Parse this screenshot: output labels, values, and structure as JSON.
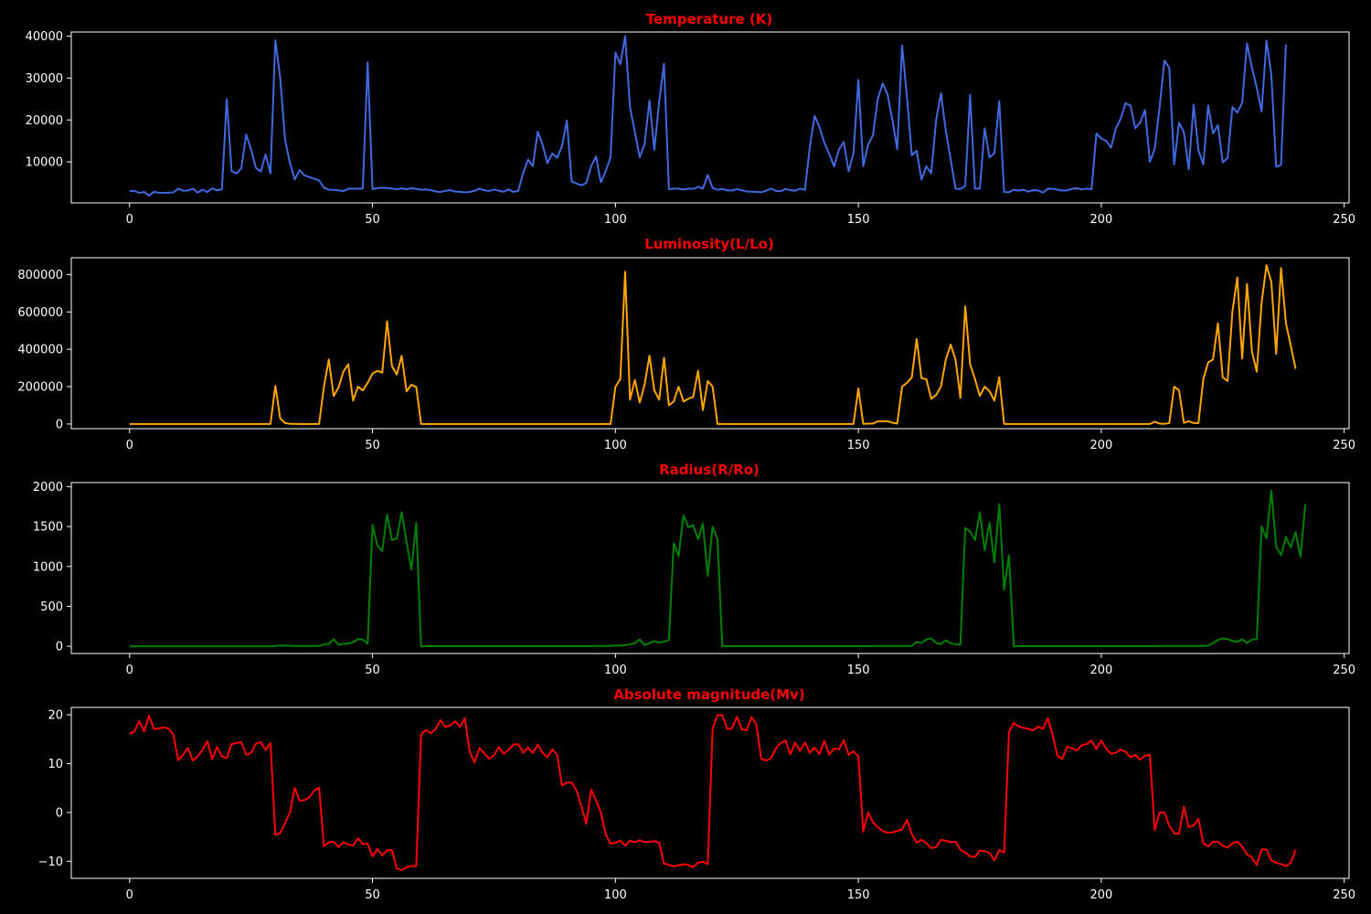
{
  "chart_data": [
    {
      "type": "line",
      "title": "Temperature (K)",
      "xlabel": "",
      "ylabel": "",
      "xlim": [
        -12,
        251
      ],
      "ylim": [
        200,
        41000
      ],
      "xticks": [
        0,
        50,
        100,
        150,
        200,
        250
      ],
      "yticks": [
        10000,
        20000,
        30000,
        40000
      ],
      "color": "#4169e1",
      "grid": false,
      "series": [
        {
          "values": [
            3068,
            3042,
            2600,
            2800,
            1939,
            2840,
            2637,
            2600,
            2650,
            2700,
            3600,
            3129,
            3134,
            3628,
            2650,
            3340,
            2799,
            3692,
            3192,
            3441,
            25000,
            7740,
            7220,
            8500,
            16500,
            12990,
            8570,
            7700,
            11790,
            7230,
            39000,
            30000,
            15276,
            9700,
            5800,
            8052,
            6757,
            6380,
            5936,
            5587,
            3826,
            3365,
            3270,
            3200,
            3008,
            3600,
            3575,
            3574,
            3625,
            33750,
            3490,
            3750,
            3834,
            3749,
            3650,
            3450,
            3660,
            3450,
            3752,
            3535,
            3341,
            3432,
            3255,
            2935,
            2800,
            3099,
            3249,
            2930,
            2850,
            2700,
            2814,
            3100,
            3600,
            3200,
            3050,
            3400,
            3100,
            2860,
            3450,
            2800,
            3100,
            7300,
            10541,
            9000,
            17200,
            14100,
            9675,
            12010,
            10980,
            13720,
            19860,
            5300,
            4800,
            4400,
            4950,
            9030,
            11250,
            5112,
            7720,
            11160,
            36108,
            33300,
            40000,
            23000,
            17120,
            11096,
            14245,
            24630,
            12893,
            24345,
            33421,
            3459,
            3605,
            3615,
            3399,
            3610,
            3553,
            4015,
            3625,
            6850,
            3780,
            3323,
            3531,
            3218,
            3146,
            3511,
            3225,
            2935,
            2861,
            2856,
            2731,
            3095,
            3607,
            3100,
            2989,
            3542,
            3243,
            3091,
            3598,
            3324,
            13420,
            21020,
            18290,
            14520,
            11900,
            8924,
            12912,
            14732,
            7723,
            12098,
            29560,
            8945,
            14060,
            16390,
            25070,
            28700,
            26140,
            20120,
            13023,
            37800,
            25390,
            11567,
            12675,
            5752,
            8927,
            7282,
            19923,
            26373,
            17383,
            10574,
            3574,
            3493,
            4287,
            26000,
            3600,
            3614,
            18000,
            11000,
            12100,
            24490,
            2817,
            2774,
            3340,
            3150,
            3340,
            2890,
            3230,
            3200,
            2630,
            3600,
            3570,
            3360,
            3150,
            3200,
            3560,
            3700,
            3400,
            3620,
            3450,
            16787,
            15574,
            15000,
            13385,
            18000,
            20300,
            24000,
            23440,
            18000,
            19400,
            22350,
            10012,
            13089,
            23095,
            34190,
            32460,
            9373,
            19364,
            17140,
            8250,
            23678,
            12749,
            9383,
            23440,
            16787,
            18734,
            9892,
            10930,
            23095,
            21738,
            24145,
            38234,
            32489,
            27739,
            22012,
            38940,
            30839,
            8829,
            9235,
            38000
          ]
        }
      ]
    },
    {
      "type": "line",
      "title": "Luminosity(L/Lo)",
      "xlabel": "",
      "ylabel": "",
      "xlim": [
        -12,
        251
      ],
      "ylim": [
        -25000,
        890000
      ],
      "xticks": [
        0,
        50,
        100,
        150,
        200,
        250
      ],
      "yticks": [
        0,
        200000,
        400000,
        600000,
        800000
      ],
      "color": "#ffa500",
      "grid": false,
      "series": [
        {
          "values": [
            0,
            0,
            0,
            0,
            0,
            0,
            0,
            0,
            0,
            0,
            0,
            0,
            0,
            0,
            0,
            0,
            0,
            0,
            0,
            0,
            0,
            0,
            0,
            0,
            0,
            0,
            0,
            0,
            0,
            0,
            204000,
            30000,
            5000,
            1000,
            500,
            200,
            100,
            100,
            100,
            100,
            200000,
            345000,
            150000,
            195000,
            280000,
            320000,
            125000,
            200000,
            180000,
            220000,
            270000,
            285000,
            275000,
            550000,
            310000,
            265000,
            365000,
            175000,
            210000,
            198000,
            0,
            0,
            0,
            0,
            0,
            0,
            0,
            0,
            0,
            0,
            0,
            0,
            0,
            0,
            0,
            0,
            0,
            0,
            0,
            0,
            0,
            0,
            0,
            0,
            0,
            0,
            0,
            0,
            0,
            0,
            0,
            0,
            0,
            0,
            0,
            0,
            0,
            0,
            0,
            0,
            200000,
            240000,
            815000,
            130000,
            236000,
            115000,
            210000,
            365000,
            180000,
            130000,
            355000,
            100000,
            120000,
            200000,
            120000,
            135000,
            145000,
            285000,
            75000,
            230000,
            200000,
            0,
            0,
            0,
            0,
            0,
            0,
            0,
            0,
            0,
            0,
            0,
            0,
            0,
            0,
            0,
            0,
            0,
            0,
            0,
            0,
            0,
            0,
            0,
            0,
            0,
            0,
            0,
            0,
            0,
            190000,
            1000,
            2000,
            2000,
            15000,
            15000,
            15000,
            7000,
            2000,
            200000,
            220000,
            250000,
            455000,
            245000,
            240000,
            135000,
            155000,
            200000,
            345000,
            425000,
            345000,
            140000,
            630000,
            320000,
            240000,
            150000,
            200000,
            175000,
            125000,
            250000,
            0,
            0,
            0,
            0,
            0,
            0,
            0,
            0,
            0,
            0,
            0,
            0,
            0,
            0,
            0,
            0,
            0,
            0,
            0,
            0,
            0,
            0,
            0,
            0,
            0,
            0,
            0,
            0,
            0,
            0,
            0,
            12000,
            2000,
            1000,
            5000,
            200000,
            180000,
            6000,
            15000,
            5000,
            5000,
            240000,
            330000,
            345000,
            540000,
            250000,
            230000,
            605000,
            785000,
            350000,
            750000,
            390000,
            280000,
            650000,
            850000,
            760000,
            375000,
            835000,
            540000,
            420000,
            295000
          ]
        }
      ]
    },
    {
      "type": "line",
      "title": "Radius(R/Ro)",
      "xlabel": "",
      "ylabel": "",
      "xlim": [
        -12,
        251
      ],
      "ylim": [
        -90,
        2050
      ],
      "xticks": [
        0,
        50,
        100,
        150,
        200,
        250
      ],
      "yticks": [
        0,
        500,
        1000,
        1500,
        2000
      ],
      "color": "#008000",
      "grid": false,
      "series": [
        {
          "values": [
            0.17,
            0.15,
            0.1,
            0.16,
            0.1,
            0.13,
            0.1,
            0.13,
            0.1,
            0.1,
            0.1,
            0.1,
            0.1,
            0.1,
            0.1,
            0.1,
            0.1,
            0.1,
            0.1,
            0.1,
            0.1,
            0.1,
            0.1,
            0.1,
            0.1,
            0.1,
            0.1,
            0.1,
            0.1,
            0.1,
            6,
            10,
            9,
            8,
            5,
            5,
            5,
            5,
            5,
            5,
            25,
            30,
            90,
            20,
            30,
            35,
            50,
            90,
            85,
            30,
            1520,
            1260,
            1190,
            1650,
            1330,
            1350,
            1680,
            1310,
            960,
            1550,
            0.8,
            0.9,
            0.9,
            0.9,
            0.9,
            0.9,
            0.9,
            0.9,
            0.9,
            0.9,
            0.9,
            0.9,
            0.9,
            0.9,
            0.9,
            0.9,
            0.9,
            0.9,
            0.9,
            0.9,
            0.9,
            1,
            1,
            1,
            1,
            1,
            1,
            1,
            1,
            1,
            1,
            1,
            1,
            1,
            1,
            1,
            5,
            5,
            5,
            5,
            10,
            10,
            15,
            25,
            40,
            85,
            15,
            40,
            65,
            45,
            60,
            80,
            1290,
            1130,
            1640,
            1490,
            1520,
            1340,
            1540,
            880,
            1500,
            1340,
            0.9,
            0.9,
            0.9,
            0.9,
            0.9,
            0.9,
            0.9,
            0.9,
            0.9,
            0.9,
            0.9,
            0.9,
            0.9,
            0.9,
            0.9,
            0.9,
            0.9,
            0.9,
            0.9,
            0.9,
            0.9,
            1,
            1,
            1,
            1,
            1,
            1,
            1,
            1,
            1,
            2,
            5,
            5,
            5,
            5,
            5,
            5,
            5,
            5,
            5,
            55,
            40,
            85,
            100,
            40,
            30,
            75,
            40,
            25,
            20,
            1480,
            1440,
            1330,
            1680,
            1200,
            1550,
            1050,
            1780,
            710,
            1140,
            0.9,
            0.9,
            0.9,
            0.9,
            0.9,
            0.9,
            0.9,
            0.9,
            0.9,
            0.9,
            0.9,
            0.9,
            0.9,
            0.9,
            0.9,
            0.9,
            0.9,
            0.9,
            0.9,
            0.9,
            0.9,
            1,
            1,
            1,
            1,
            1,
            1,
            1,
            1,
            1,
            1,
            5,
            5,
            5,
            5,
            5,
            5,
            5,
            5,
            5,
            10,
            40,
            80,
            100,
            90,
            70,
            55,
            90,
            40,
            85,
            90,
            1500,
            1350,
            1950,
            1250,
            1140,
            1370,
            1240,
            1430,
            1120,
            1780
          ]
        }
      ]
    },
    {
      "type": "line",
      "title": "Absolute magnitude(Mv)",
      "xlabel": "",
      "ylabel": "",
      "xlim": [
        -12,
        251
      ],
      "ylim": [
        -13.5,
        21.5
      ],
      "xticks": [
        0,
        50,
        100,
        150,
        200,
        250
      ],
      "yticks": [
        -10,
        0,
        10,
        20
      ],
      "color": "#ff0000",
      "grid": false,
      "series": [
        {
          "values": [
            16.1,
            16.6,
            18.7,
            16.6,
            19.8,
            17.1,
            17.2,
            17.4,
            17.2,
            16,
            10.7,
            11.8,
            13.2,
            10.6,
            11.5,
            12.8,
            14.6,
            10.9,
            13.4,
            11.5,
            11.1,
            14.0,
            14.2,
            14.4,
            11.8,
            12.2,
            14.1,
            14.4,
            12.8,
            14.2,
            -4.6,
            -4.2,
            -2.2,
            0.0,
            5.0,
            2.4,
            2.5,
            3.1,
            4.5,
            5.1,
            -6.9,
            -6.1,
            -6.0,
            -7.1,
            -6.1,
            -6.6,
            -6.8,
            -5.3,
            -6.5,
            -6.4,
            -9.0,
            -7.5,
            -8.8,
            -7.8,
            -7.7,
            -11.5,
            -11.8,
            -11.2,
            -11.0,
            -11.0,
            16.0,
            16.9,
            16.2,
            17.1,
            18.9,
            17.5,
            17.8,
            18.7,
            17.5,
            19.3,
            12.5,
            10.2,
            13.2,
            12.1,
            11.0,
            11.7,
            13.4,
            12.0,
            12.8,
            13.9,
            14.0,
            12.2,
            13.3,
            12.2,
            13.9,
            12.2,
            11.3,
            12.9,
            11.8,
            5.5,
            6.1,
            6.1,
            4.5,
            1.2,
            -2.3,
            4.7,
            2.5,
            0.0,
            -4.5,
            -6.4,
            -6.2,
            -5.8,
            -6.8,
            -5.8,
            -6.1,
            -5.7,
            -6.1,
            -6.0,
            -5.9,
            -6.2,
            -10.5,
            -10.7,
            -11.1,
            -10.8,
            -10.6,
            -10.8,
            -11.2,
            -10.3,
            -10.1,
            -10.6,
            17.1,
            19.9,
            19.9,
            17.1,
            17.2,
            19.6,
            17.0,
            16.8,
            19.5,
            18.0,
            11.0,
            10.6,
            11.1,
            13.1,
            14.2,
            14.7,
            11.9,
            14.3,
            12.6,
            14.3,
            12.2,
            13.3,
            11.9,
            14.7,
            11.8,
            13.1,
            12.9,
            14.8,
            11.8,
            12.5,
            11.5,
            -3.9,
            0.0,
            -2.0,
            -3.0,
            -3.8,
            -4.2,
            -4.1,
            -3.8,
            -3.5,
            -1.5,
            -4.4,
            -6.2,
            -5.6,
            -6.3,
            -7.3,
            -7.1,
            -5.6,
            -5.8,
            -6.1,
            -6.0,
            -7.6,
            -8.2,
            -9.0,
            -9.1,
            -7.8,
            -7.9,
            -8.3,
            -9.8,
            -7.7,
            -8.2,
            16.5,
            18.3,
            17.6,
            17.3,
            17.1,
            16.8,
            17.6,
            17.1,
            19.3,
            15.8,
            11.5,
            11.0,
            13.5,
            13.1,
            12.7,
            13.8,
            14.0,
            14.7,
            13.0,
            14.7,
            13.1,
            12.0,
            12.2,
            12.9,
            12.4,
            11.3,
            11.8,
            10.8,
            11.6,
            11.8,
            -3.6,
            0.0,
            0.0,
            -2.7,
            -4.3,
            -4.4,
            1.2,
            -3.0,
            -2.7,
            -1.3,
            -6.3,
            -7.0,
            -6.0,
            -6.0,
            -6.8,
            -7.2,
            -6.3,
            -6.0,
            -7.0,
            -8.6,
            -9.2,
            -10.8,
            -7.6,
            -7.6,
            -9.8,
            -10.3,
            -10.6,
            -11.0,
            -10.3,
            -7.6
          ]
        }
      ]
    }
  ]
}
